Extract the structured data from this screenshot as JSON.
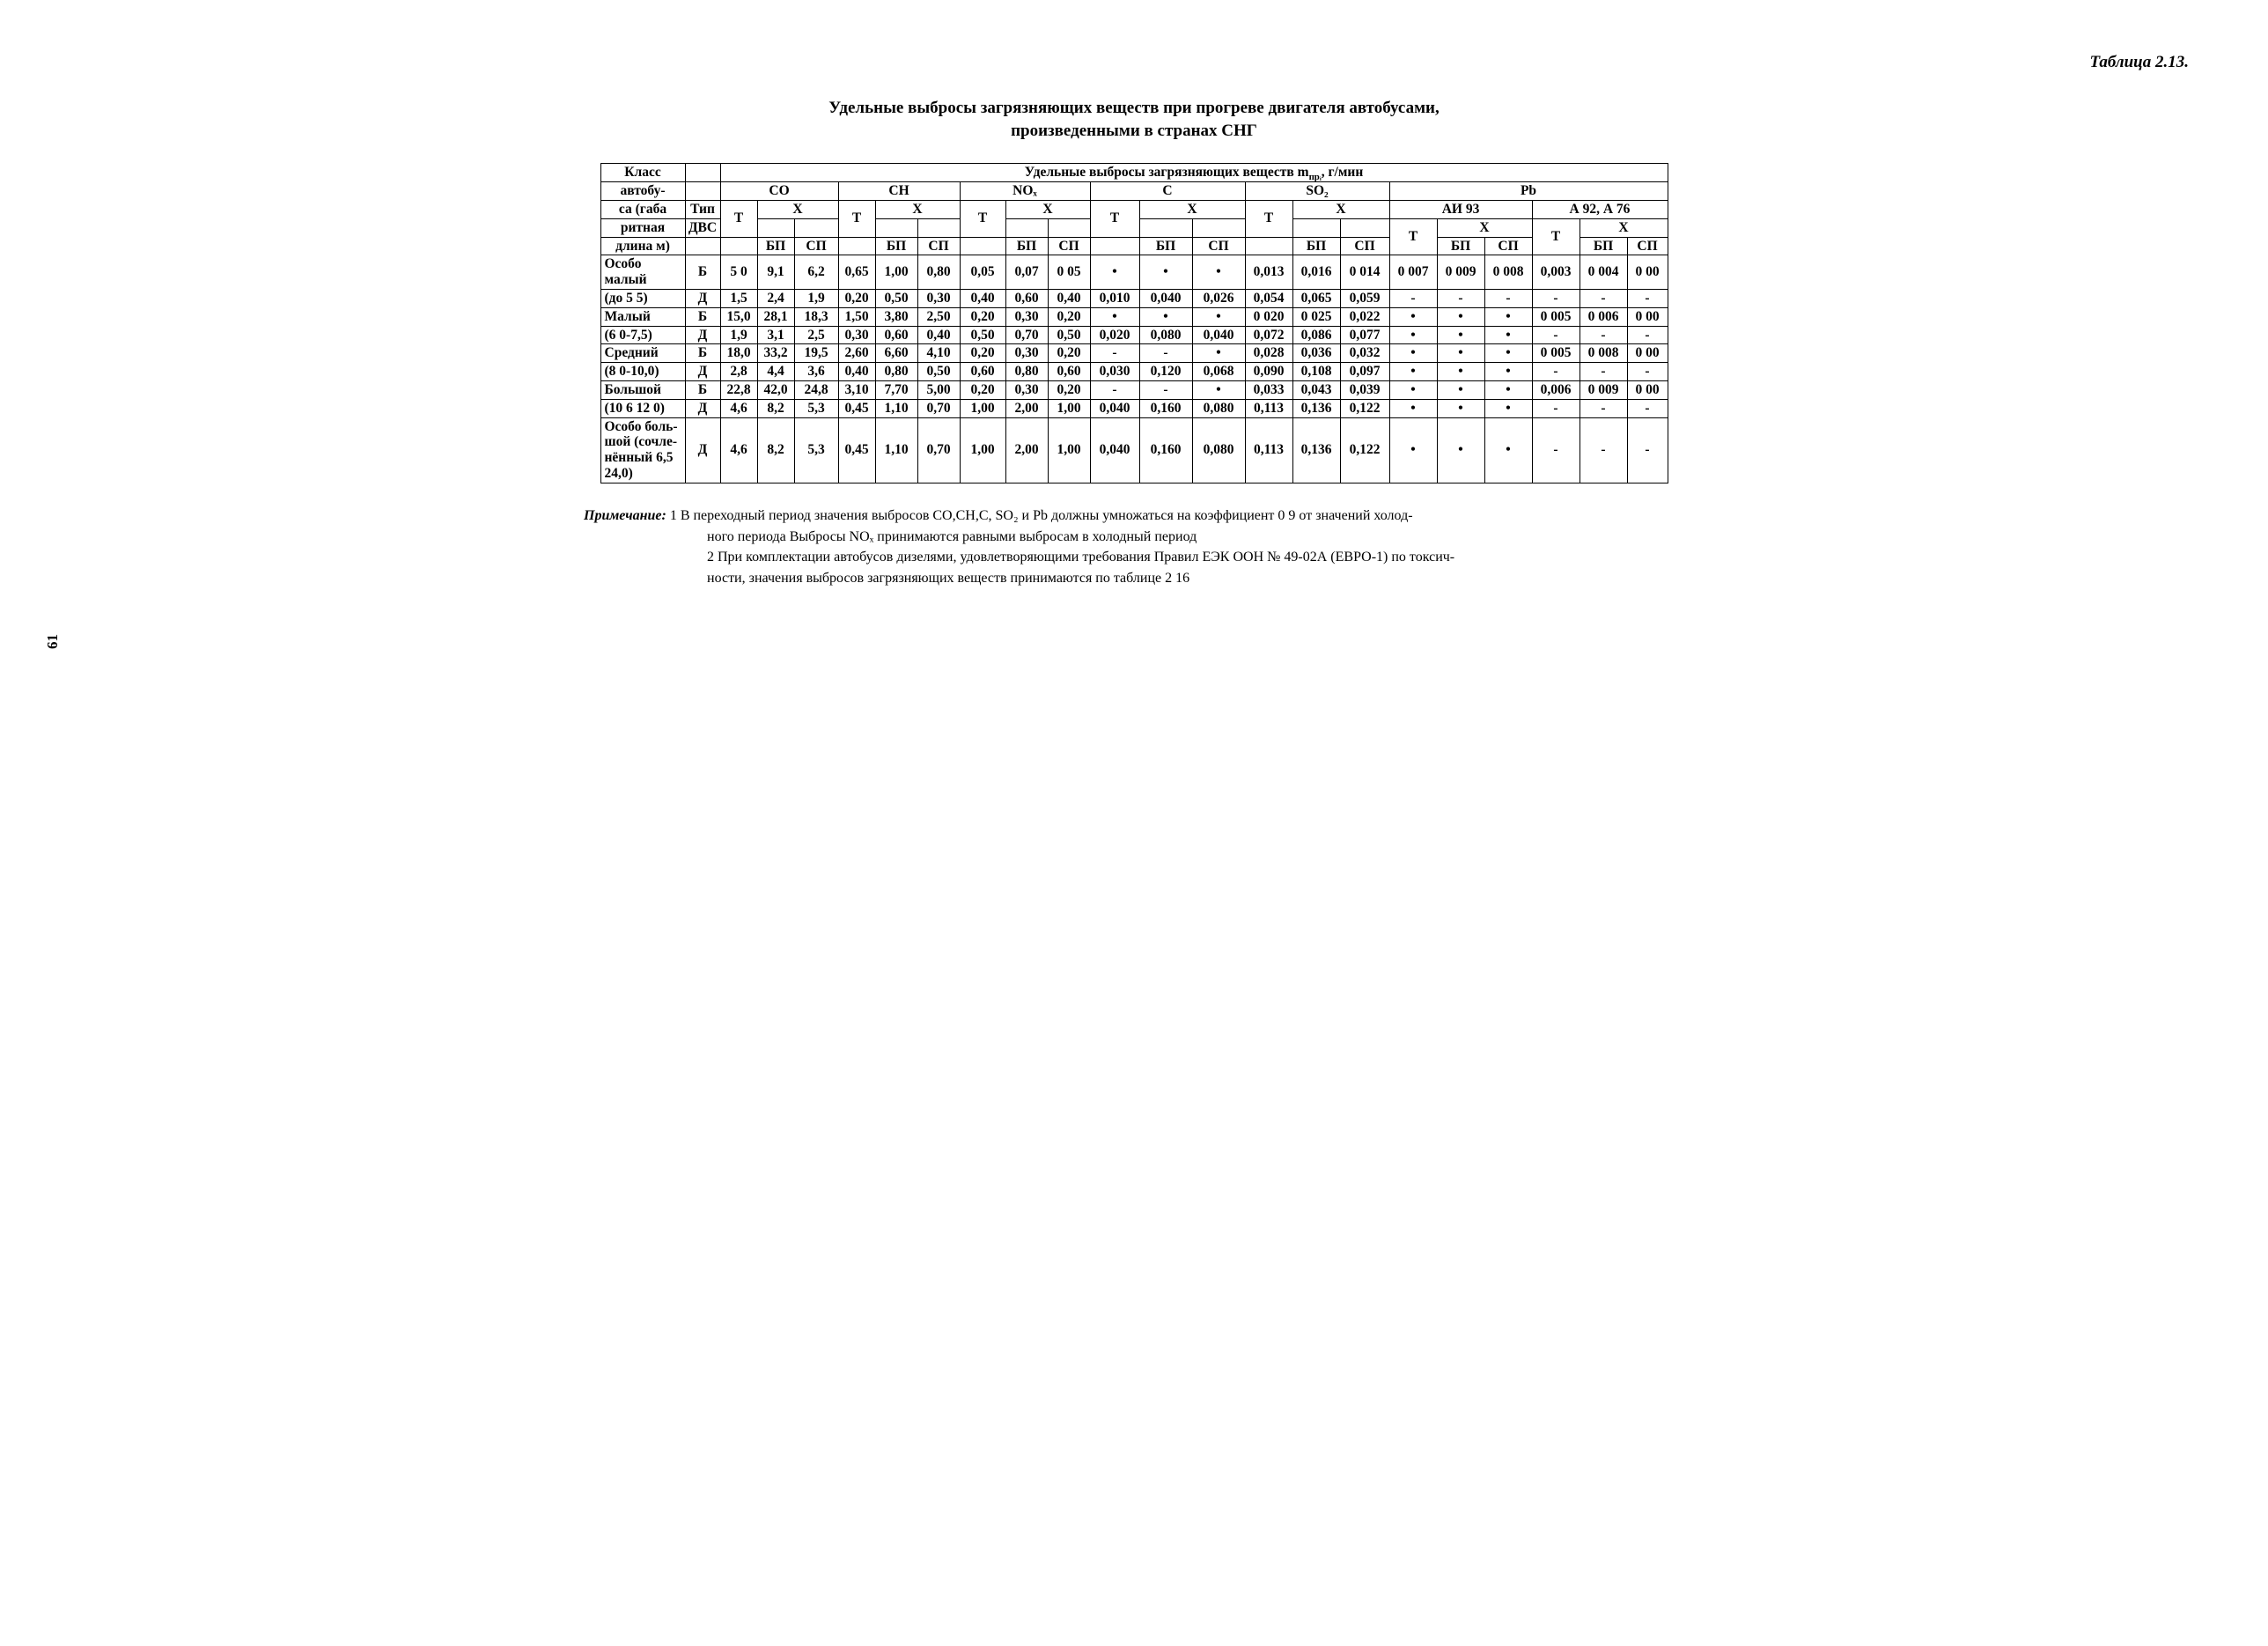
{
  "table_number": "Таблица 2.13.",
  "title_line1": "Удельные выбросы загрязняющих веществ при прогреве двигателя автобусами,",
  "title_line2": "произведенными в странах СНГ",
  "super_header": "Удельные выбросы загрязняющих веществ m",
  "super_header_sub": "прᵢ",
  "super_header_unit": ", г/мин",
  "col": {
    "class": "Класс",
    "bus": "автобу-",
    "gab": "са (габа",
    "overall": "ритная",
    "length": "длина м)",
    "type": "Тип",
    "dvs": "ДВС",
    "T": "Т",
    "X": "Х",
    "BP": "БП",
    "SP": "СП",
    "CO": "CO",
    "CH": "CH",
    "NOx": "NOₓ",
    "C": "C",
    "SO2": "SO₂",
    "Pb": "Pb",
    "AI93": "АИ 93",
    "A92A76": "А 92, А 76"
  },
  "rows": [
    {
      "label": "Особо малый",
      "type": "Б",
      "c": [
        "5 0",
        "9,1",
        "6,2",
        "0,65",
        "1,00",
        "0,80",
        "0,05",
        "0,07",
        "0 05",
        "•",
        "•",
        "•",
        "0,013",
        "0,016",
        "0 014",
        "0 007",
        "0 009",
        "0 008",
        "0,003",
        "0 004",
        "0 00"
      ]
    },
    {
      "label": "(до 5 5)",
      "type": "Д",
      "c": [
        "1,5",
        "2,4",
        "1,9",
        "0,20",
        "0,50",
        "0,30",
        "0,40",
        "0,60",
        "0,40",
        "0,010",
        "0,040",
        "0,026",
        "0,054",
        "0,065",
        "0,059",
        "-",
        "-",
        "-",
        "-",
        "-",
        "-"
      ]
    },
    {
      "label": "Малый",
      "type": "Б",
      "c": [
        "15,0",
        "28,1",
        "18,3",
        "1,50",
        "3,80",
        "2,50",
        "0,20",
        "0,30",
        "0,20",
        "•",
        "•",
        "•",
        "0 020",
        "0 025",
        "0,022",
        "•",
        "•",
        "•",
        "0 005",
        "0 006",
        "0 00"
      ]
    },
    {
      "label": "(6 0-7,5)",
      "type": "Д",
      "c": [
        "1,9",
        "3,1",
        "2,5",
        "0,30",
        "0,60",
        "0,40",
        "0,50",
        "0,70",
        "0,50",
        "0,020",
        "0,080",
        "0,040",
        "0,072",
        "0,086",
        "0,077",
        "•",
        "•",
        "•",
        "-",
        "-",
        "-"
      ]
    },
    {
      "label": "Средний",
      "type": "Б",
      "c": [
        "18,0",
        "33,2",
        "19,5",
        "2,60",
        "6,60",
        "4,10",
        "0,20",
        "0,30",
        "0,20",
        "-",
        "-",
        "•",
        "0,028",
        "0,036",
        "0,032",
        "•",
        "•",
        "•",
        "0 005",
        "0 008",
        "0 00"
      ]
    },
    {
      "label": "(8 0-10,0)",
      "type": "Д",
      "c": [
        "2,8",
        "4,4",
        "3,6",
        "0,40",
        "0,80",
        "0,50",
        "0,60",
        "0,80",
        "0,60",
        "0,030",
        "0,120",
        "0,068",
        "0,090",
        "0,108",
        "0,097",
        "•",
        "•",
        "•",
        "-",
        "-",
        "-"
      ]
    },
    {
      "label": "Большой",
      "type": "Б",
      "c": [
        "22,8",
        "42,0",
        "24,8",
        "3,10",
        "7,70",
        "5,00",
        "0,20",
        "0,30",
        "0,20",
        "-",
        "-",
        "•",
        "0,033",
        "0,043",
        "0,039",
        "•",
        "•",
        "•",
        "0,006",
        "0 009",
        "0 00"
      ]
    },
    {
      "label": "(10 6 12 0)",
      "type": "Д",
      "c": [
        "4,6",
        "8,2",
        "5,3",
        "0,45",
        "1,10",
        "0,70",
        "1,00",
        "2,00",
        "1,00",
        "0,040",
        "0,160",
        "0,080",
        "0,113",
        "0,136",
        "0,122",
        "•",
        "•",
        "•",
        "-",
        "-",
        "-"
      ]
    },
    {
      "label": "Особо боль- шой (сочле- нённый 6,5 24,0)",
      "type": "Д",
      "c": [
        "4,6",
        "8,2",
        "5,3",
        "0,45",
        "1,10",
        "0,70",
        "1,00",
        "2,00",
        "1,00",
        "0,040",
        "0,160",
        "0,080",
        "0,113",
        "0,136",
        "0,122",
        "•",
        "•",
        "•",
        "-",
        "-",
        "-"
      ]
    }
  ],
  "notes": {
    "label": "Примечание:",
    "n1a": "1 В переходный период значения выбросов CO,CH,C, SO₂ и Pb должны умножаться на коэффициент 0 9 от значений холод-",
    "n1b": "ного периода  Выбросы NOₓ принимаются равными выбросам в холодный период",
    "n2a": "2  При комплектации автобусов дизелями, удовлетворяющими требования Правил ЕЭК ООН № 49-02А (ЕВРО-1) по токсич-",
    "n2b": "ности, значения выбросов загрязняющих веществ принимаются по таблице 2 16"
  },
  "page_number": "61",
  "col_widths": {
    "label": 96,
    "type": 40,
    "co_t": 42,
    "co_bp": 42,
    "co_sp": 50,
    "ch_t": 42,
    "ch_bp": 48,
    "ch_sp": 48,
    "nox_t": 52,
    "nox_bp": 48,
    "nox_sp": 48,
    "c_t": 56,
    "c_bp": 60,
    "c_sp": 60,
    "so2_t": 54,
    "so2_bp": 54,
    "so2_sp": 56,
    "pb_a_t": 54,
    "pb_a_bp": 54,
    "pb_a_sp": 54,
    "pb_b_t": 54,
    "pb_b_bp": 54,
    "pb_b_sp": 46
  }
}
